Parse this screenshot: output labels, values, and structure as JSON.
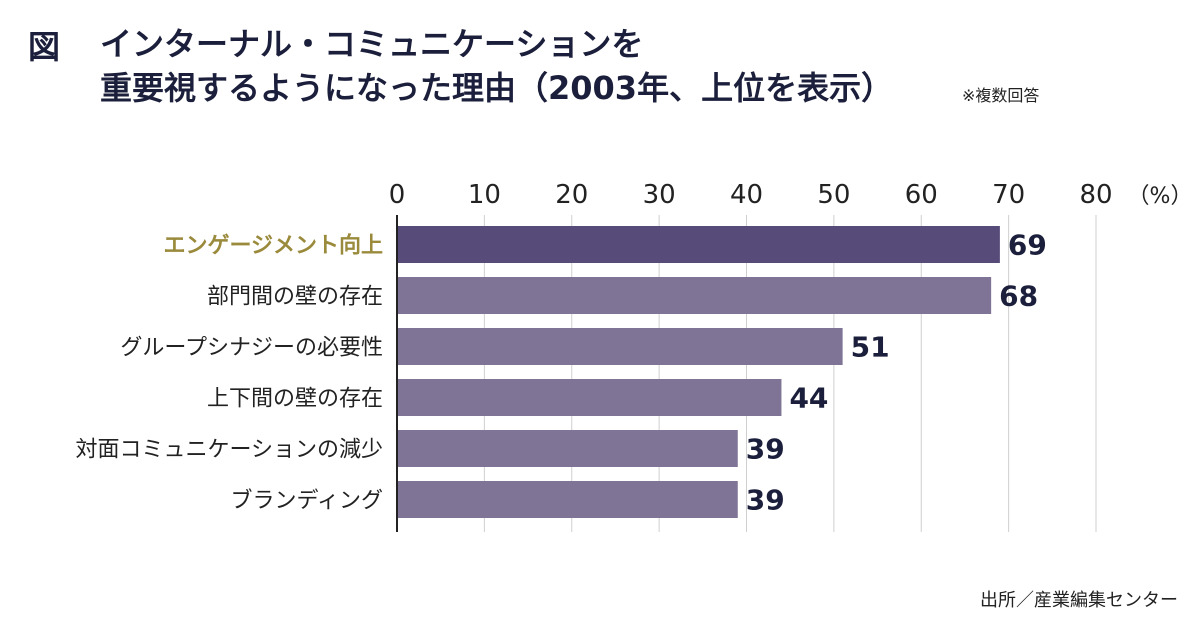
{
  "figure_label": "図",
  "title_lines": [
    "インターナル・コミュニケーションを",
    "重要視するようになった理由（2003年、上位を表示）"
  ],
  "note": "※複数回答",
  "source": "出所／産業編集センター",
  "colors": {
    "highlight_bar": "#574b7a",
    "bar": "#7f7496",
    "highlight_label": "#9a8a3c",
    "label": "#222222",
    "value_label": "#1b1f3b",
    "grid": "#cfcfcf",
    "axis": "#222222"
  },
  "chart_data": {
    "type": "bar",
    "orientation": "horizontal",
    "title": "インターナル・コミュニケーションを重要視するようになった理由（2003年、上位を表示）",
    "unit_label": "（%）",
    "xlim": [
      0,
      80
    ],
    "ticks": [
      0,
      10,
      20,
      30,
      40,
      50,
      60,
      70,
      80
    ],
    "grid": true,
    "categories": [
      "エンゲージメント向上",
      "部門間の壁の存在",
      "グループシナジーの必要性",
      "上下間の壁の存在",
      "対面コミュニケーションの減少",
      "ブランディング"
    ],
    "values": [
      69,
      68,
      51,
      44,
      39,
      39
    ],
    "highlight_index": 0
  }
}
